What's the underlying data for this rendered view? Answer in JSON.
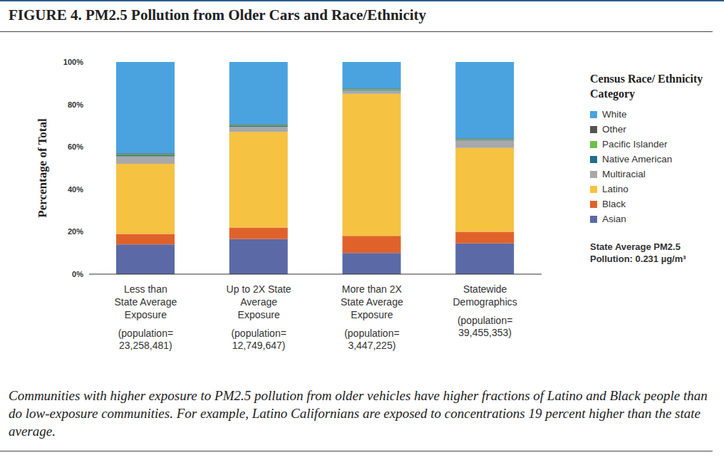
{
  "chart_data": {
    "type": "bar",
    "stacked": true,
    "title": "FIGURE 4. PM2.5 Pollution from Older Cars and Race/Ethnicity",
    "ylabel": "Percentage of Total",
    "categories": [
      "Less than State Average Exposure",
      "Up to 2X State Average Exposure",
      "More than 2X State Average Exposure",
      "Statewide Demographics"
    ],
    "category_notes": [
      "(population= 23,258,481)",
      "(population= 12,749,647)",
      "(population= 3,447,225)",
      "(population= 39,455,353)"
    ],
    "series": [
      {
        "name": "Asian",
        "color": "#5b6aa6",
        "values": [
          14,
          16.5,
          10,
          14.5
        ]
      },
      {
        "name": "Black",
        "color": "#e0622b",
        "values": [
          5,
          5.5,
          8,
          5.5
        ]
      },
      {
        "name": "Latino",
        "color": "#f5c242",
        "values": [
          33,
          45,
          67,
          39.5
        ]
      },
      {
        "name": "Multiracial",
        "color": "#a8a8a8",
        "values": [
          3.5,
          2.5,
          1.5,
          3.5
        ]
      },
      {
        "name": "Native American",
        "color": "#1f6e8c",
        "values": [
          0.5,
          0.3,
          0.3,
          0.3
        ]
      },
      {
        "name": "Pacific Islander",
        "color": "#6dbf4b",
        "values": [
          0.5,
          0.4,
          0.4,
          0.4
        ]
      },
      {
        "name": "Other",
        "color": "#555555",
        "values": [
          0.5,
          0.3,
          0.3,
          0.3
        ]
      },
      {
        "name": "White",
        "color": "#4aa3df",
        "values": [
          43,
          29.5,
          12.5,
          36
        ]
      }
    ],
    "ylim": [
      0,
      100
    ],
    "yticks": [
      {
        "value": 0,
        "label": "0%"
      },
      {
        "value": 20,
        "label": "20%"
      },
      {
        "value": 40,
        "label": "40%"
      },
      {
        "value": 60,
        "label": "60%"
      },
      {
        "value": 80,
        "label": "80%"
      },
      {
        "value": 100,
        "label": "100%"
      }
    ],
    "grid": false,
    "legend": "right",
    "legend_title": "Census Race/ Ethnicity Category",
    "annotation": "State Average PM2.5 Pollution: 0.231 µg/m³",
    "caption": "Communities with higher exposure to PM2.5 pollution from older vehicles have higher fractions of Latino and Black people than do low-exposure communities. For example, Latino Californians are exposed to concentrations 19 percent higher than the state average."
  }
}
